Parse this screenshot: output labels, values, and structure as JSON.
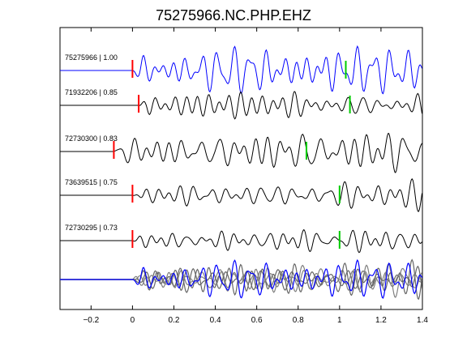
{
  "chart_data": {
    "type": "line",
    "title": "75275966.NC.PHP.EHZ",
    "xlabel": "",
    "ylabel": "",
    "xlim": [
      -0.35,
      1.4
    ],
    "x_ticks": [
      -0.2,
      0,
      0.2,
      0.4,
      0.6,
      0.8,
      1,
      1.2,
      1.4
    ],
    "x_tick_labels": [
      "−0.2",
      "0",
      "0.2",
      "0.4",
      "0.6",
      "0.8",
      "1",
      "1.2",
      "1.4"
    ],
    "grid": false,
    "colors": {
      "master": "#0000ff",
      "trace": "#000000",
      "overlay": "#808080",
      "p_pick": "#ff0000",
      "s_pick": "#00cc00"
    },
    "traces": [
      {
        "label": "75275966 | 1.00",
        "p_pick": 0.0,
        "s_pick": 1.03,
        "master": true
      },
      {
        "label": "71932206 | 0.85",
        "p_pick": 0.03,
        "s_pick": 1.05,
        "master": false
      },
      {
        "label": "72730300 | 0.83",
        "p_pick": -0.09,
        "s_pick": 0.84,
        "master": false
      },
      {
        "label": "73639515 | 0.75",
        "p_pick": 0.0,
        "s_pick": 1.0,
        "master": false
      },
      {
        "label": "72730295 | 0.73",
        "p_pick": 0.0,
        "s_pick": 1.0,
        "master": false
      }
    ],
    "stack": {
      "label": "",
      "onset": 0.0
    }
  }
}
